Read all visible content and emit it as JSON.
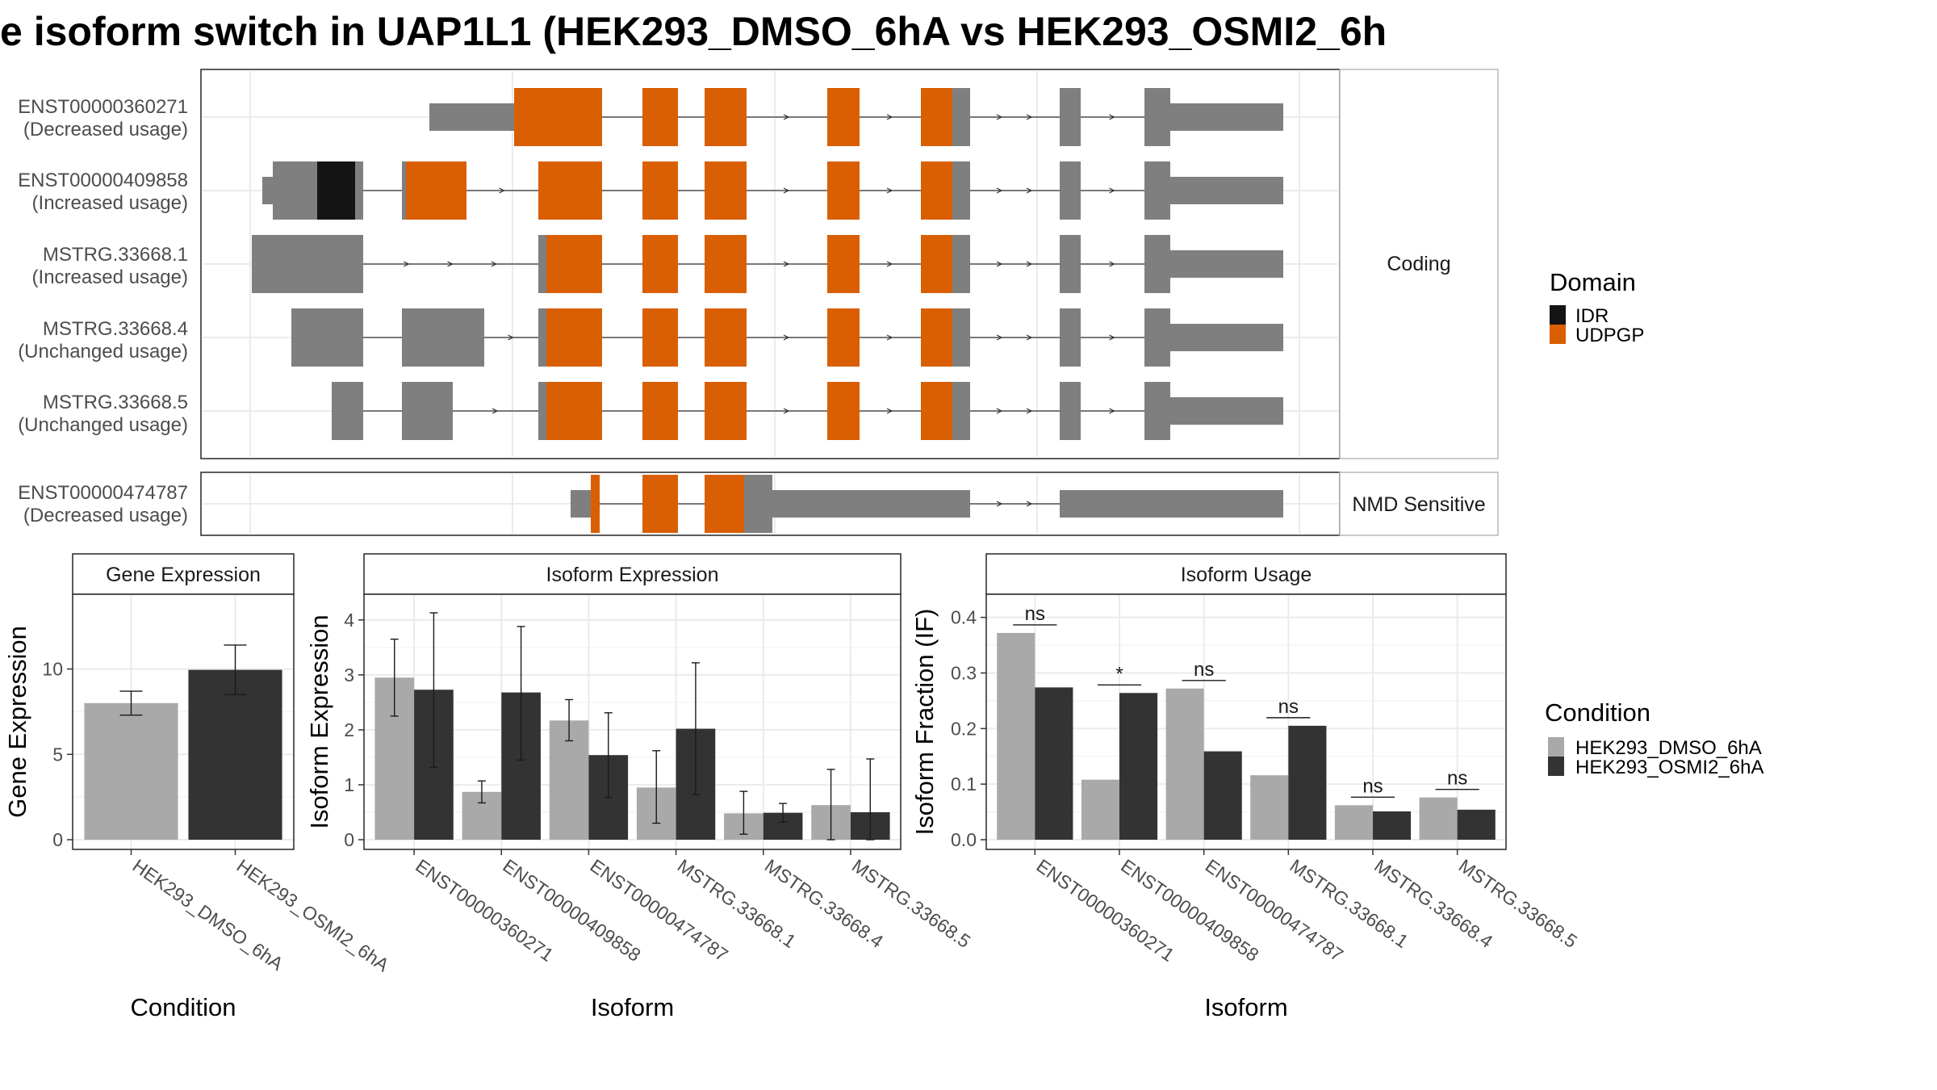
{
  "title": "e isoform switch in UAP1L1 (HEK293_DMSO_6hA vs HEK293_OSMI2_6h",
  "colors": {
    "exon": "#7f7f7f",
    "udpgp": "#d95f02",
    "idr": "#141414",
    "cond1": "#a9a9a9",
    "cond2": "#333333",
    "strip_bg": "#ffffff",
    "grid": "#ebebeb"
  },
  "structure": {
    "coding_strip": "Coding",
    "nmd_strip": "NMD Sensitive",
    "transcripts": [
      {
        "id": "ENST00000360271",
        "usage": "(Decreased usage)",
        "panel": "coding"
      },
      {
        "id": "ENST00000409858",
        "usage": "(Increased usage)",
        "panel": "coding"
      },
      {
        "id": "MSTRG.33668.1",
        "usage": "(Increased usage)",
        "panel": "coding"
      },
      {
        "id": "MSTRG.33668.4",
        "usage": "(Unchanged usage)",
        "panel": "coding"
      },
      {
        "id": "MSTRG.33668.5",
        "usage": "(Unchanged usage)",
        "panel": "coding"
      },
      {
        "id": "ENST00000474787",
        "usage": "(Decreased usage)",
        "panel": "nmd"
      }
    ]
  },
  "domain_legend": {
    "title": "Domain",
    "items": [
      {
        "name": "IDR",
        "color": "#141414"
      },
      {
        "name": "UDPGP",
        "color": "#d95f02"
      }
    ]
  },
  "condition_legend": {
    "title": "Condition",
    "items": [
      {
        "name": "HEK293_DMSO_6hA",
        "color": "#a9a9a9"
      },
      {
        "name": "HEK293_OSMI2_6hA",
        "color": "#333333"
      }
    ]
  },
  "chart_data": [
    {
      "type": "bar",
      "title": "Gene Expression",
      "xlabel": "Condition",
      "ylabel": "Gene Expression",
      "ylim": [
        0,
        14
      ],
      "yticks": [
        0,
        5,
        10
      ],
      "categories": [
        "HEK293_DMSO_6hA",
        "HEK293_OSMI2_6hA"
      ],
      "values": [
        8.0,
        9.95
      ],
      "err_low": [
        7.3,
        8.5
      ],
      "err_high": [
        8.7,
        11.4
      ]
    },
    {
      "type": "bar",
      "title": "Isoform Expression",
      "xlabel": "Isoform",
      "ylabel": "Isoform Expression",
      "ylim": [
        0,
        4.35
      ],
      "yticks": [
        0,
        1,
        2,
        3,
        4
      ],
      "categories": [
        "ENST00000360271",
        "ENST00000409858",
        "ENST00000474787",
        "MSTRG.33668.1",
        "MSTRG.33668.4",
        "MSTRG.33668.5"
      ],
      "series": [
        {
          "name": "HEK293_DMSO_6hA",
          "values": [
            2.95,
            0.87,
            2.17,
            0.95,
            0.48,
            0.63
          ],
          "err_low": [
            2.25,
            0.67,
            1.8,
            0.3,
            0.1,
            0.0
          ],
          "err_high": [
            3.65,
            1.07,
            2.55,
            1.62,
            0.88,
            1.28
          ]
        },
        {
          "name": "HEK293_OSMI2_6hA",
          "values": [
            2.73,
            2.68,
            1.54,
            2.02,
            0.49,
            0.5
          ],
          "err_low": [
            1.32,
            1.45,
            0.77,
            0.82,
            0.32,
            0.0
          ],
          "err_high": [
            4.13,
            3.88,
            2.31,
            3.22,
            0.66,
            1.47
          ]
        }
      ]
    },
    {
      "type": "bar",
      "title": "Isoform Usage",
      "xlabel": "Isoform",
      "ylabel": "Isoform Fraction (IF)",
      "ylim": [
        0,
        0.43
      ],
      "yticks": [
        "0.0",
        "0.1",
        "0.2",
        "0.3",
        "0.4"
      ],
      "categories": [
        "ENST00000360271",
        "ENST00000409858",
        "ENST00000474787",
        "MSTRG.33668.1",
        "MSTRG.33668.4",
        "MSTRG.33668.5"
      ],
      "series": [
        {
          "name": "HEK293_DMSO_6hA",
          "values": [
            0.372,
            0.108,
            0.272,
            0.116,
            0.062,
            0.076
          ]
        },
        {
          "name": "HEK293_OSMI2_6hA",
          "values": [
            0.274,
            0.264,
            0.159,
            0.205,
            0.051,
            0.054
          ]
        }
      ],
      "significance": [
        "ns",
        "*",
        "ns",
        "ns",
        "ns",
        "ns"
      ]
    }
  ]
}
